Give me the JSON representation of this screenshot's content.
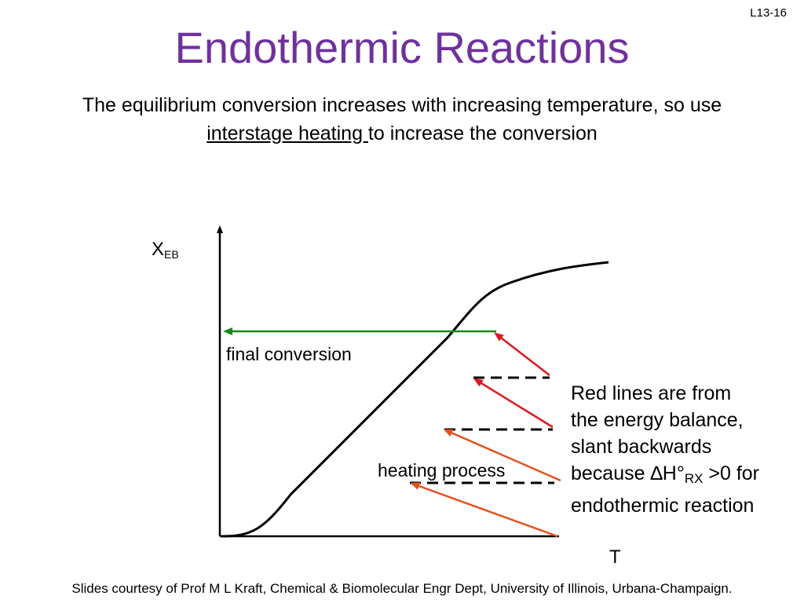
{
  "slide_number": "L13-16",
  "title": "Endothermic Reactions",
  "subtitle": {
    "part1": "The equilibrium conversion increases with increasing temperature, so use",
    "underlined": "interstage heating ",
    "part2": "to increase the conversion"
  },
  "diagram": {
    "y_axis_label_main": "X",
    "y_axis_label_sub": "EB",
    "x_axis_label": "T",
    "final_conversion_label": "final conversion",
    "heating_process_label": "heating process",
    "note": {
      "line1": "Red lines are from",
      "line2": "the energy balance,",
      "line3": "slant backwards",
      "line4_pre": "because ∆H°",
      "line4_sub": "RX",
      "line4_post": " >0 for",
      "line5": "endothermic reaction"
    },
    "colors": {
      "equilibrium_curve": "#000000",
      "energy_balance_lines": "#e8161c",
      "energy_balance_lines_lower": "#e8501a",
      "final_conversion_arrow": "#148c14",
      "heating_dashes": "#000000"
    }
  },
  "footer": "Slides courtesy of Prof M L Kraft, Chemical & Biomolecular Engr Dept, University of Illinois, Urbana-Champaign.",
  "title_color": "#7030a0"
}
